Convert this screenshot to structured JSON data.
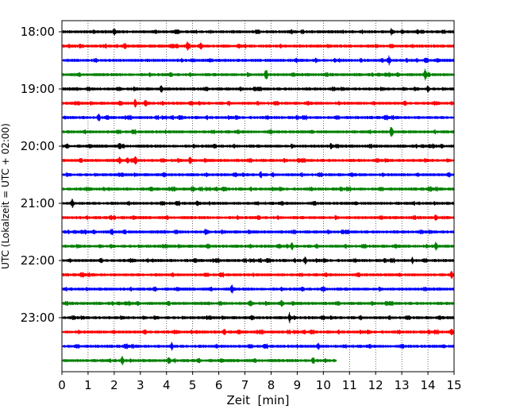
{
  "chart_data": {
    "type": "line",
    "title": "",
    "xlabel": "Zeit  [min]",
    "ylabel": "UTC (Lokalzeit = UTC + 02:00)",
    "xlim": [
      0,
      15
    ],
    "x_ticks": [
      "0",
      "1",
      "2",
      "3",
      "4",
      "5",
      "6",
      "7",
      "8",
      "9",
      "10",
      "11",
      "12",
      "13",
      "14",
      "15"
    ],
    "y_ticks": [
      "18:00",
      "19:00",
      "20:00",
      "21:00",
      "22:00",
      "23:00"
    ],
    "grid": "vertical dotted",
    "colors": [
      "#000000",
      "#ff0000",
      "#0000ff",
      "#008000"
    ],
    "series": [
      {
        "start": "18:00",
        "color": "#000000",
        "x_end": 15,
        "spikes": [
          [
            2.0,
            5
          ],
          [
            12.6,
            5
          ]
        ]
      },
      {
        "start": "18:15",
        "color": "#ff0000",
        "x_end": 15,
        "spikes": [
          [
            2.4,
            4
          ],
          [
            4.8,
            5
          ],
          [
            5.3,
            4
          ]
        ]
      },
      {
        "start": "18:30",
        "color": "#0000ff",
        "x_end": 15,
        "spikes": [
          [
            12.5,
            6
          ]
        ]
      },
      {
        "start": "18:45",
        "color": "#008000",
        "x_end": 15,
        "spikes": [
          [
            7.8,
            9
          ],
          [
            13.9,
            7
          ]
        ]
      },
      {
        "start": "19:00",
        "color": "#000000",
        "x_end": 15,
        "spikes": [
          [
            3.8,
            5
          ],
          [
            14.0,
            4
          ]
        ]
      },
      {
        "start": "19:15",
        "color": "#ff0000",
        "x_end": 15,
        "spikes": [
          [
            2.8,
            5
          ],
          [
            3.2,
            4
          ]
        ]
      },
      {
        "start": "19:30",
        "color": "#0000ff",
        "x_end": 15,
        "spikes": [
          [
            1.4,
            4
          ]
        ]
      },
      {
        "start": "19:45",
        "color": "#008000",
        "x_end": 15,
        "spikes": [
          [
            12.6,
            8
          ]
        ]
      },
      {
        "start": "20:00",
        "color": "#000000",
        "x_end": 15,
        "spikes": [
          [
            2.2,
            4
          ],
          [
            10.3,
            4
          ]
        ]
      },
      {
        "start": "20:15",
        "color": "#ff0000",
        "x_end": 15,
        "spikes": [
          [
            2.2,
            6
          ],
          [
            2.5,
            5
          ],
          [
            2.8,
            6
          ],
          [
            4.9,
            4
          ]
        ]
      },
      {
        "start": "20:30",
        "color": "#0000ff",
        "x_end": 15,
        "spikes": [
          [
            7.6,
            4
          ]
        ]
      },
      {
        "start": "20:45",
        "color": "#008000",
        "x_end": 15,
        "spikes": [
          [
            5.0,
            4
          ]
        ]
      },
      {
        "start": "21:00",
        "color": "#000000",
        "x_end": 15,
        "spikes": [
          [
            0.4,
            6
          ],
          [
            5.2,
            4
          ]
        ]
      },
      {
        "start": "21:15",
        "color": "#ff0000",
        "x_end": 15,
        "spikes": [
          [
            2.0,
            4
          ],
          [
            14.3,
            4
          ]
        ]
      },
      {
        "start": "21:30",
        "color": "#0000ff",
        "x_end": 15,
        "spikes": [
          [
            1.9,
            4
          ],
          [
            5.5,
            4
          ]
        ]
      },
      {
        "start": "21:45",
        "color": "#008000",
        "x_end": 15,
        "spikes": [
          [
            8.8,
            4
          ],
          [
            14.3,
            5
          ]
        ]
      },
      {
        "start": "22:00",
        "color": "#000000",
        "x_end": 15,
        "spikes": [
          [
            9.3,
            4
          ],
          [
            13.4,
            4
          ]
        ]
      },
      {
        "start": "22:15",
        "color": "#ff0000",
        "x_end": 15,
        "spikes": [
          [
            14.9,
            4
          ]
        ]
      },
      {
        "start": "22:30",
        "color": "#0000ff",
        "x_end": 15,
        "spikes": [
          [
            6.5,
            5
          ],
          [
            10.0,
            4
          ]
        ]
      },
      {
        "start": "22:45",
        "color": "#008000",
        "x_end": 15,
        "spikes": [
          [
            7.2,
            4
          ],
          [
            8.4,
            4
          ]
        ]
      },
      {
        "start": "23:00",
        "color": "#000000",
        "x_end": 15,
        "spikes": [
          [
            8.7,
            6
          ]
        ]
      },
      {
        "start": "23:15",
        "color": "#ff0000",
        "x_end": 15,
        "spikes": [
          [
            6.2,
            5
          ],
          [
            14.9,
            4
          ]
        ]
      },
      {
        "start": "23:30",
        "color": "#0000ff",
        "x_end": 15,
        "spikes": [
          [
            4.2,
            5
          ],
          [
            9.8,
            5
          ]
        ]
      },
      {
        "start": "23:45",
        "color": "#008000",
        "x_end": 10.5,
        "spikes": [
          [
            2.3,
            5
          ],
          [
            4.1,
            5
          ],
          [
            9.6,
            5
          ]
        ]
      }
    ]
  }
}
